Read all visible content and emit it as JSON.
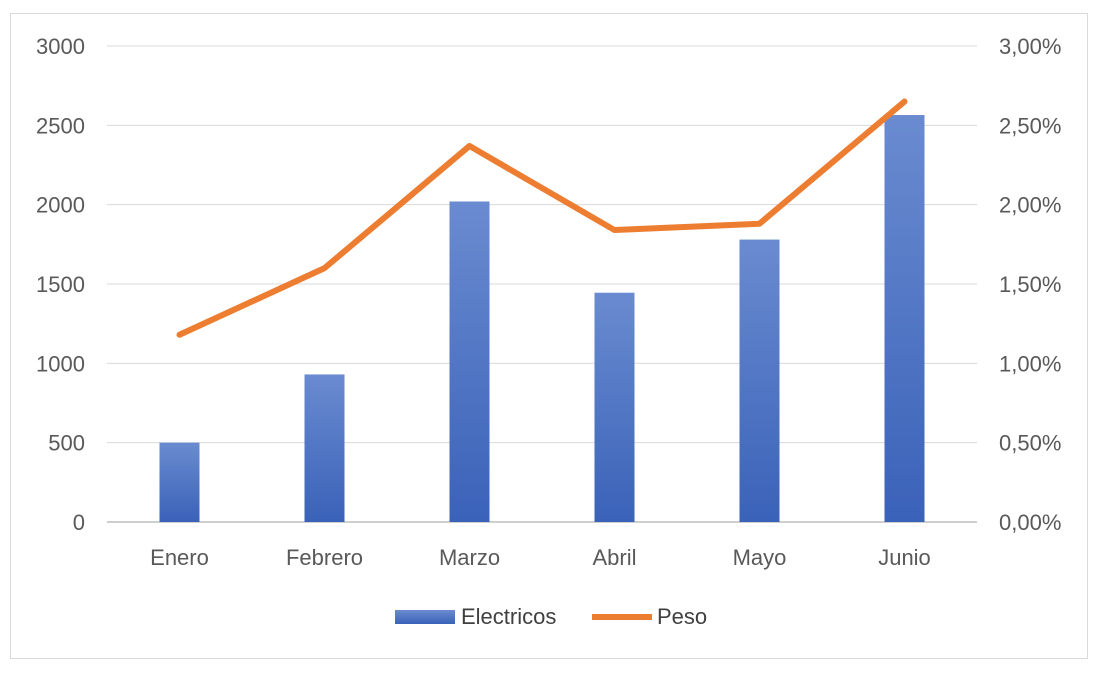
{
  "chart_data": {
    "type": "bar",
    "categories": [
      "Enero",
      "Febrero",
      "Marzo",
      "Abril",
      "Mayo",
      "Junio"
    ],
    "series": [
      {
        "name": "Electricos",
        "type": "bar",
        "axis": "left",
        "color": "#4472C4",
        "values": [
          500,
          930,
          2020,
          1445,
          1780,
          2565
        ]
      },
      {
        "name": "Peso",
        "type": "line",
        "axis": "right",
        "color": "#ED7D31",
        "values": [
          0.0118,
          0.016,
          0.0237,
          0.0184,
          0.0188,
          0.0265
        ]
      }
    ],
    "y_left": {
      "ylim": [
        0,
        3000
      ],
      "ticks": [
        0,
        500,
        1000,
        1500,
        2000,
        2500,
        3000
      ],
      "tick_labels": [
        "0",
        "500",
        "1000",
        "1500",
        "2000",
        "2500",
        "3000"
      ]
    },
    "y_right": {
      "ylim": [
        0,
        0.03
      ],
      "ticks": [
        0,
        0.005,
        0.01,
        0.015,
        0.02,
        0.025,
        0.03
      ],
      "tick_labels": [
        "0,00%",
        "0,50%",
        "1,00%",
        "1,50%",
        "2,00%",
        "2,50%",
        "3,00%"
      ]
    },
    "grid": true,
    "legend": "bottom",
    "title": "",
    "xlabel": "",
    "ylabel": ""
  }
}
